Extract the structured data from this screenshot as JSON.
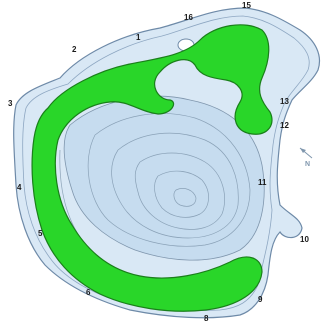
{
  "map": {
    "colors": {
      "water": "#d9e8f5",
      "deep_water": "#c6dcef",
      "shore_outline": "#6e8aa8",
      "contour": "#7f96ad",
      "vegetation_zone": "#29d629"
    },
    "station_labels": [
      "1",
      "2",
      "3",
      "4",
      "5",
      "6",
      "8",
      "9",
      "10",
      "11",
      "12",
      "13",
      "15",
      "16"
    ],
    "north_arrow_label": "N"
  }
}
